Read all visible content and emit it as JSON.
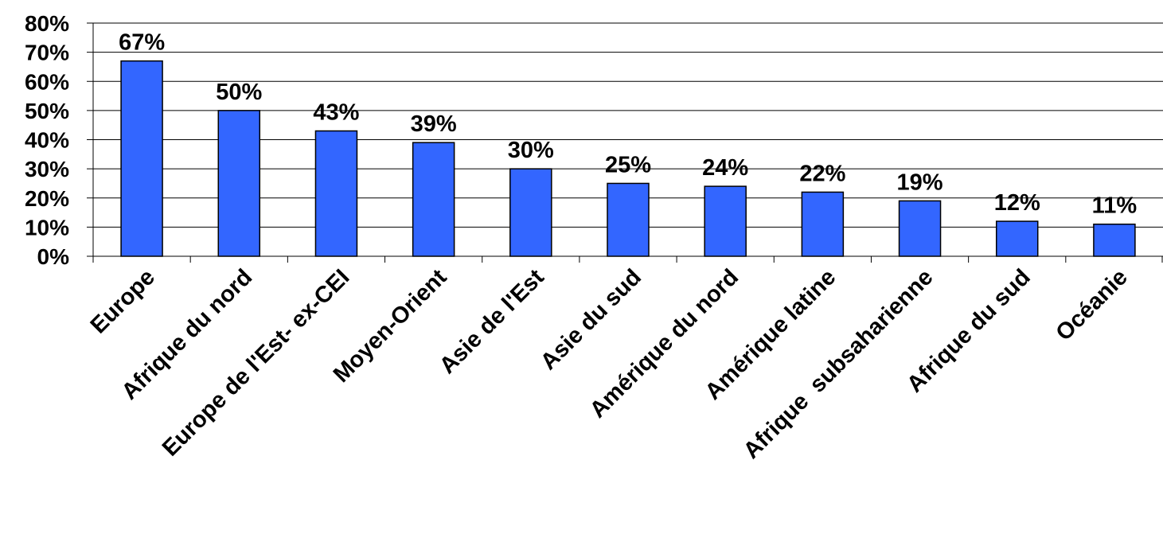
{
  "chart_data": {
    "type": "bar",
    "title": "",
    "xlabel": "",
    "ylabel": "",
    "categories": [
      "Europe",
      "Afrique du nord",
      "Europe de l'Est- ex-CEI",
      "Moyen-Orient",
      "Asie de l'Est",
      "Asie du sud",
      "Amérique du nord",
      "Amérique latine",
      "Afrique  subsaharienne",
      "Afrique du sud",
      "Océanie"
    ],
    "values": [
      67,
      50,
      43,
      39,
      30,
      25,
      24,
      22,
      19,
      12,
      11
    ],
    "value_labels": [
      "67%",
      "50%",
      "43%",
      "39%",
      "30%",
      "25%",
      "24%",
      "22%",
      "19%",
      "12%",
      "11%"
    ],
    "y_ticks": [
      0,
      10,
      20,
      30,
      40,
      50,
      60,
      70,
      80
    ],
    "y_tick_labels": [
      "0%",
      "10%",
      "20%",
      "30%",
      "40%",
      "50%",
      "60%",
      "70%",
      "80%"
    ],
    "ylim": [
      0,
      80
    ],
    "grid": true,
    "legend": "none",
    "bar_color": "#3366FF"
  }
}
